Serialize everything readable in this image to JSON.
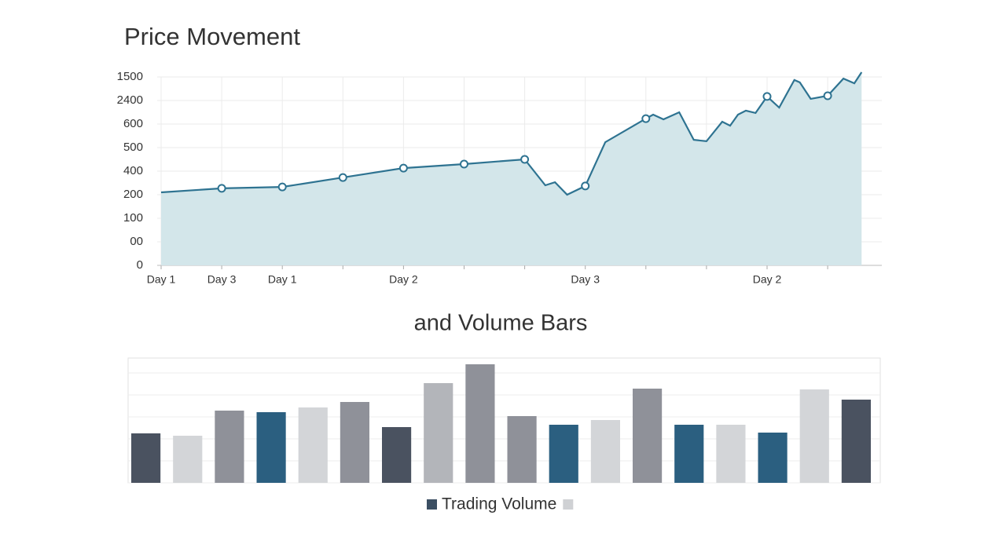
{
  "chart_data": [
    {
      "type": "area-line",
      "title": "Price Movement",
      "color": "#2e7391",
      "fill": "#d3e6ea",
      "x": [
        0,
        1,
        2,
        3,
        4,
        5,
        6,
        6.34,
        6.5,
        6.7,
        7,
        7.33,
        8,
        8.12,
        8.29,
        8.55,
        8.79,
        9,
        9.26,
        9.39,
        9.52,
        9.65,
        9.81,
        10,
        10.2,
        10.45,
        10.54,
        10.72,
        11,
        11.26,
        11.44,
        11.56
      ],
      "values": [
        3.1,
        3.27,
        3.33,
        3.73,
        4.13,
        4.3,
        4.5,
        3.4,
        3.53,
        3.0,
        3.37,
        5.23,
        6.23,
        6.4,
        6.2,
        6.5,
        5.33,
        5.27,
        6.1,
        5.93,
        6.4,
        6.57,
        6.47,
        7.17,
        6.7,
        7.87,
        7.77,
        7.07,
        7.2,
        7.93,
        7.73,
        8.2
      ],
      "xlim": [
        0,
        11.6
      ],
      "xticks": [
        0,
        1,
        2,
        3,
        4,
        5,
        6,
        7,
        8,
        9,
        10,
        11
      ],
      "xtick_labels": [
        "Day 1",
        "Day 3",
        "Day 1",
        null,
        "Day 2",
        null,
        null,
        "Day 3",
        null,
        null,
        "Day 2",
        null
      ],
      "ylim": [
        0,
        8
      ],
      "yticks": [
        0,
        {
          "value": 1,
          "label": "00"
        },
        {
          "value": 2,
          "label": "100"
        },
        {
          "value": 3,
          "label": "200"
        },
        {
          "value": 4,
          "label": "400"
        },
        {
          "value": 5,
          "label": "500"
        },
        {
          "value": 6,
          "label": "600"
        },
        {
          "value": 7,
          "label": "2400"
        },
        {
          "value": 8,
          "label": "1500"
        }
      ],
      "grid": true
    },
    {
      "type": "bar",
      "title": "and Volume Bars",
      "values": [
        63,
        60,
        92,
        90,
        96,
        103,
        71,
        127,
        151,
        85,
        74,
        80,
        120,
        74,
        74,
        64,
        119,
        106
      ],
      "colors": [
        "#4a5260",
        "#d3d5d8",
        "#8f9199",
        "#2b5f80",
        "#d3d5d8",
        "#8f9199",
        "#4a5260",
        "#b3b5ba",
        "#8f9199",
        "#8f9199",
        "#2b5f80",
        "#d3d5d8",
        "#8f9199",
        "#2b5f80",
        "#d3d5d8",
        "#2b5f80",
        "#d3d5d8",
        "#4a5260"
      ],
      "ylim": [
        0,
        159
      ],
      "yticks": [
        0,
        28,
        56,
        84,
        112,
        140
      ],
      "grid": true,
      "legend": [
        {
          "label": "Trading Volume",
          "color": "#3b4f63"
        },
        {
          "color": "#cfd1d4"
        }
      ]
    }
  ]
}
